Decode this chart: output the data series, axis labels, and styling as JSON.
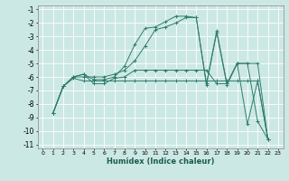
{
  "xlabel": "Humidex (Indice chaleur)",
  "bg_color": "#cce8e4",
  "line_color": "#2e7d6e",
  "grid_color": "#ffffff",
  "xlim": [
    -0.5,
    23.5
  ],
  "ylim": [
    -11.3,
    -0.7
  ],
  "series": [
    {
      "x": [
        1,
        2,
        3,
        4,
        5,
        6,
        7,
        8,
        9,
        10,
        11,
        12,
        13,
        14,
        15,
        16,
        17,
        18,
        19,
        20,
        21,
        22
      ],
      "y": [
        -8.7,
        -6.7,
        -6.0,
        -5.8,
        -6.2,
        -6.2,
        -6.0,
        -5.2,
        -3.6,
        -2.4,
        -2.3,
        -1.9,
        -1.5,
        -1.5,
        -1.6,
        -6.5,
        -2.6,
        -6.5,
        -5.0,
        -5.0,
        -9.3,
        -10.6
      ]
    },
    {
      "x": [
        1,
        2,
        3,
        4,
        5,
        6,
        7,
        8,
        9,
        10,
        11,
        12,
        13,
        14,
        15,
        16,
        17,
        18,
        19,
        20,
        21,
        22
      ],
      "y": [
        -8.7,
        -6.7,
        -6.1,
        -6.3,
        -6.3,
        -6.3,
        -6.3,
        -6.3,
        -6.3,
        -6.3,
        -6.3,
        -6.3,
        -6.3,
        -6.3,
        -6.3,
        -6.3,
        -6.3,
        -6.3,
        -6.3,
        -6.3,
        -6.3,
        -10.6
      ]
    },
    {
      "x": [
        1,
        2,
        3,
        4,
        5,
        6,
        7,
        8,
        9,
        10,
        11,
        12,
        13,
        14,
        15,
        16,
        17,
        18,
        19,
        20,
        21,
        22
      ],
      "y": [
        -8.7,
        -6.7,
        -6.0,
        -5.8,
        -6.5,
        -6.5,
        -6.1,
        -6.0,
        -5.5,
        -5.5,
        -5.5,
        -5.5,
        -5.5,
        -5.5,
        -5.5,
        -5.5,
        -6.5,
        -6.5,
        -5.0,
        -5.0,
        -5.0,
        -10.6
      ]
    },
    {
      "x": [
        1,
        2,
        3,
        4,
        5,
        6,
        7,
        8,
        9,
        10,
        11,
        12,
        13,
        14,
        15,
        16,
        17,
        18,
        19,
        20,
        21,
        22
      ],
      "y": [
        -8.7,
        -6.7,
        -6.0,
        -6.0,
        -6.0,
        -6.0,
        -5.8,
        -5.5,
        -4.8,
        -3.7,
        -2.5,
        -2.3,
        -2.0,
        -1.6,
        -1.6,
        -6.6,
        -2.7,
        -6.6,
        -5.0,
        -9.5,
        -6.3,
        -10.6
      ]
    }
  ],
  "xtick_vals": [
    0,
    1,
    2,
    3,
    4,
    5,
    6,
    7,
    8,
    9,
    10,
    11,
    12,
    13,
    14,
    15,
    16,
    17,
    18,
    19,
    20,
    21,
    22,
    23
  ],
  "ytick_vals": [
    -1,
    -2,
    -3,
    -4,
    -5,
    -6,
    -7,
    -8,
    -9,
    -10,
    -11
  ]
}
